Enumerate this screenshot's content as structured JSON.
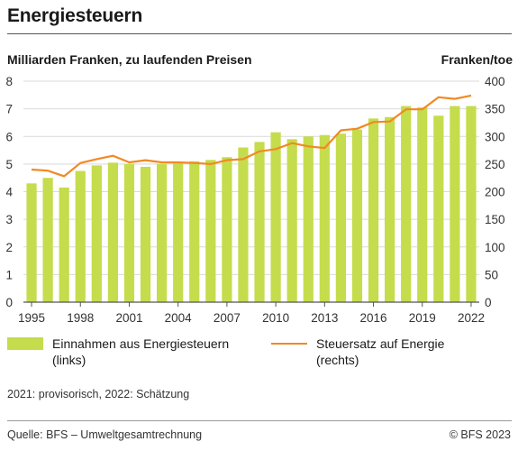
{
  "title": "Energiesteuern",
  "left_unit": "Milliarden Franken, zu laufenden Preisen",
  "right_unit": "Franken/toe",
  "legend": {
    "bar_line1": "Einnahmen aus Energiesteuern",
    "bar_line2": "(links)",
    "line_line1": "Steuersatz auf Energie",
    "line_line2": "(rechts)"
  },
  "note": "2021: provisorisch, 2022: Schätzung",
  "source": "Quelle: BFS – Umweltgesamtrechnung",
  "copyright": "© BFS 2023",
  "colors": {
    "bar": "#c5dc4c",
    "line": "#f08a24",
    "grid": "#d9d9d9",
    "axis": "#555555"
  },
  "chart_data": {
    "type": "bar+line",
    "years": [
      1995,
      1996,
      1997,
      1998,
      1999,
      2000,
      2001,
      2002,
      2003,
      2004,
      2005,
      2006,
      2007,
      2008,
      2009,
      2010,
      2011,
      2012,
      2013,
      2014,
      2015,
      2016,
      2017,
      2018,
      2019,
      2020,
      2021,
      2022
    ],
    "x_tick_labels": [
      "1995",
      "1998",
      "2001",
      "2004",
      "2007",
      "2010",
      "2013",
      "2016",
      "2019",
      "2022"
    ],
    "series": [
      {
        "name": "Einnahmen aus Energiesteuern (links)",
        "type": "bar",
        "axis": "left",
        "values": [
          4.3,
          4.5,
          4.15,
          4.75,
          4.95,
          5.05,
          5.0,
          4.9,
          5.0,
          5.05,
          5.1,
          5.15,
          5.25,
          5.6,
          5.8,
          6.15,
          5.9,
          6.0,
          6.05,
          6.1,
          6.25,
          6.65,
          6.7,
          7.1,
          7.05,
          6.75,
          7.1,
          7.1
        ]
      },
      {
        "name": "Steuersatz auf Energie (rechts)",
        "type": "line",
        "axis": "right",
        "values": [
          240,
          238,
          228,
          252,
          259,
          265,
          253,
          257,
          253,
          253,
          252,
          250,
          257,
          259,
          273,
          277,
          288,
          282,
          279,
          311,
          314,
          326,
          327,
          349,
          349,
          371,
          368,
          374
        ]
      }
    ],
    "y_left": {
      "min": 0,
      "max": 8,
      "ticks": [
        0,
        1,
        2,
        3,
        4,
        5,
        6,
        7,
        8
      ]
    },
    "y_right": {
      "min": 0,
      "max": 400,
      "ticks": [
        0,
        50,
        100,
        150,
        200,
        250,
        300,
        350,
        400
      ]
    },
    "grid": true,
    "legend_position": "bottom"
  }
}
